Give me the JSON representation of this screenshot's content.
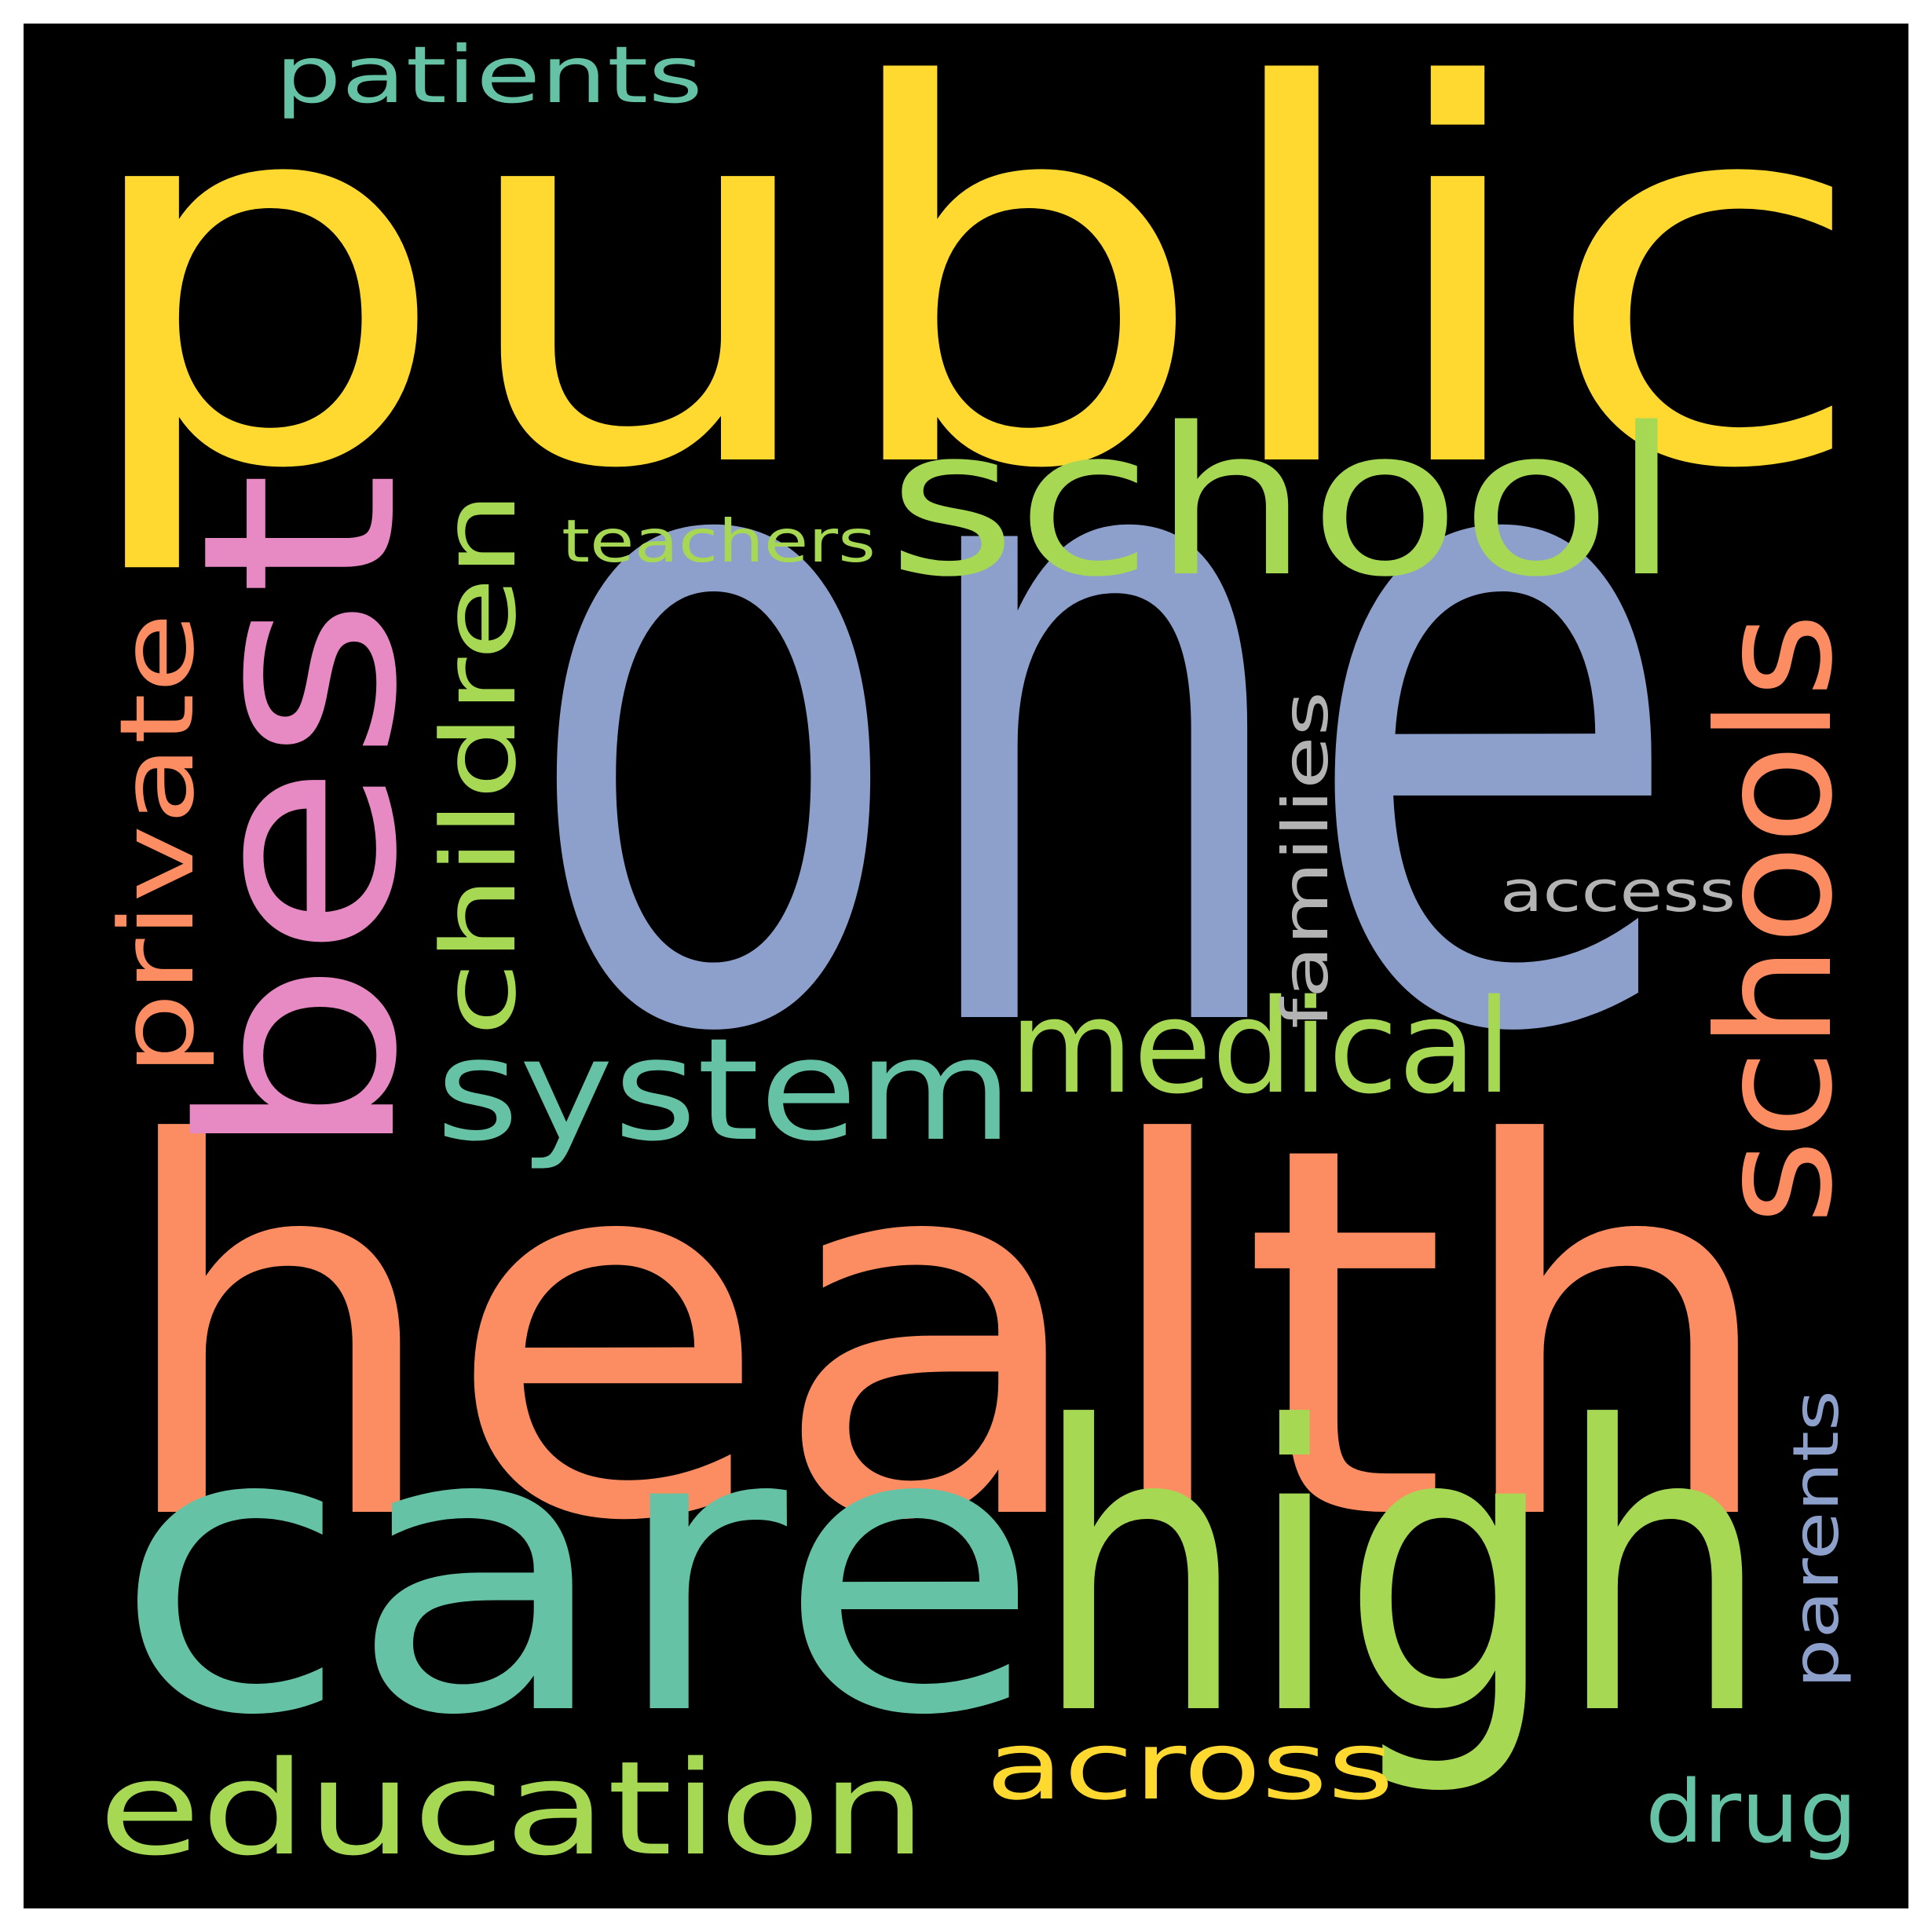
{
  "background_color": "#000000",
  "frame_color": "#ffffff",
  "words": [
    {
      "id": "public",
      "text": "public",
      "color": "#ffd92f"
    },
    {
      "id": "one",
      "text": "one",
      "color": "#8da0cb"
    },
    {
      "id": "health",
      "text": "health",
      "color": "#fc8d62"
    },
    {
      "id": "care",
      "text": "care",
      "color": "#66c2a5"
    },
    {
      "id": "high",
      "text": "high",
      "color": "#a6d854"
    },
    {
      "id": "best",
      "text": "best",
      "color": "#e78ac3"
    },
    {
      "id": "school",
      "text": "school",
      "color": "#a6d854"
    },
    {
      "id": "schools",
      "text": "schools",
      "color": "#fc8d62"
    },
    {
      "id": "system",
      "text": "system",
      "color": "#66c2a5"
    },
    {
      "id": "medical",
      "text": "medical",
      "color": "#a6d854"
    },
    {
      "id": "education",
      "text": "education",
      "color": "#a6d854"
    },
    {
      "id": "children",
      "text": "children",
      "color": "#a6d854"
    },
    {
      "id": "private",
      "text": "private",
      "color": "#fc8d62"
    },
    {
      "id": "across",
      "text": "across",
      "color": "#ffd92f"
    },
    {
      "id": "patients",
      "text": "patients",
      "color": "#66c2a5"
    },
    {
      "id": "teachers",
      "text": "teachers",
      "color": "#a6d854"
    },
    {
      "id": "families",
      "text": "families",
      "color": "#b3b3b3"
    },
    {
      "id": "access",
      "text": "access",
      "color": "#b3b3b3"
    },
    {
      "id": "parents",
      "text": "parents",
      "color": "#8da0cb"
    },
    {
      "id": "drug",
      "text": "drug",
      "color": "#66c2a5"
    }
  ]
}
